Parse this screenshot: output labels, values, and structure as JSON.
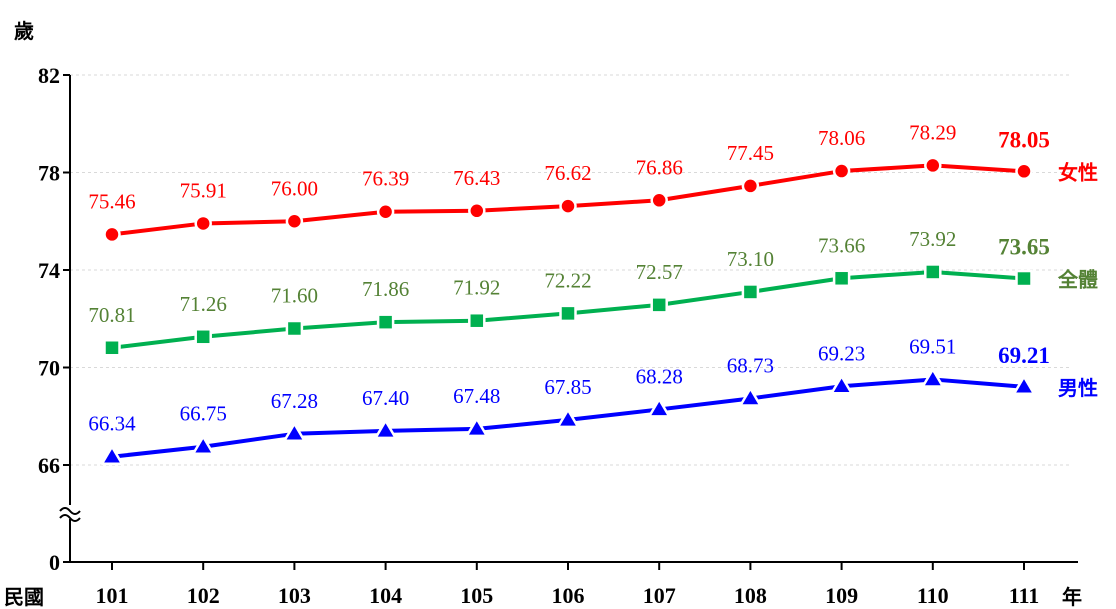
{
  "chart_data": {
    "type": "line",
    "title": "",
    "ylabel": "歲",
    "xlabel_prefix": "民國",
    "xlabel_suffix": "年",
    "categories": [
      "101",
      "102",
      "103",
      "104",
      "105",
      "106",
      "107",
      "108",
      "109",
      "110",
      "111"
    ],
    "yticks": [
      "0",
      "66",
      "70",
      "74",
      "78",
      "82"
    ],
    "ylim": [
      66,
      82
    ],
    "axis_break": true,
    "grid": "horizontal-dashed",
    "series": [
      {
        "name": "女性",
        "color": "#ff0000",
        "marker": "circle",
        "values": [
          75.46,
          75.91,
          76.0,
          76.39,
          76.43,
          76.62,
          76.86,
          77.45,
          78.06,
          78.29,
          78.05
        ],
        "labels": [
          "75.46",
          "75.91",
          "76.00",
          "76.39",
          "76.43",
          "76.62",
          "76.86",
          "77.45",
          "78.06",
          "78.29",
          "78.05"
        ]
      },
      {
        "name": "全體",
        "color": "#548235",
        "line_color": "#00b050",
        "marker": "square",
        "values": [
          70.81,
          71.26,
          71.6,
          71.86,
          71.92,
          72.22,
          72.57,
          73.1,
          73.66,
          73.92,
          73.65
        ],
        "labels": [
          "70.81",
          "71.26",
          "71.60",
          "71.86",
          "71.92",
          "72.22",
          "72.57",
          "73.10",
          "73.66",
          "73.92",
          "73.65"
        ]
      },
      {
        "name": "男性",
        "color": "#0000ff",
        "marker": "triangle",
        "values": [
          66.34,
          66.75,
          67.28,
          67.4,
          67.48,
          67.85,
          68.28,
          68.73,
          69.23,
          69.51,
          69.21
        ],
        "labels": [
          "66.34",
          "66.75",
          "67.28",
          "67.40",
          "67.48",
          "67.85",
          "68.28",
          "68.73",
          "69.23",
          "69.51",
          "69.21"
        ]
      }
    ]
  }
}
